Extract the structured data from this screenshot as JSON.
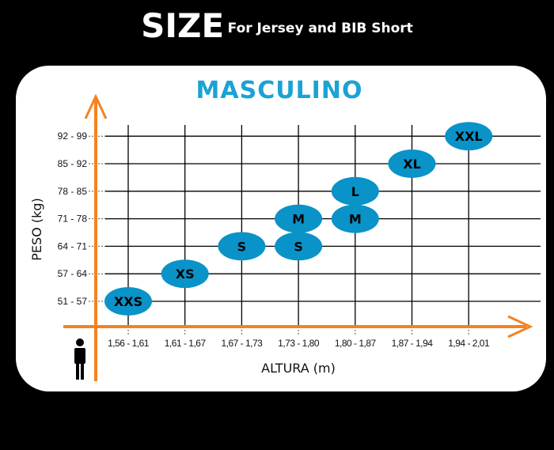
{
  "header": {
    "title": "SIZE",
    "subtitle": "For Jersey and BIB Short"
  },
  "chart_data": {
    "type": "scatter",
    "title": "MASCULINO",
    "xlabel": "ALTURA (m)",
    "ylabel": "PESO (kg)",
    "x_categories": [
      "1,56 - 1,61",
      "1,61 - 1,67",
      "1,67 - 1,73",
      "1,73 - 1,80",
      "1,80 - 1,87",
      "1,87 - 1,94",
      "1,94 - 2,01"
    ],
    "y_categories": [
      "51 - 57",
      "57 - 64",
      "64 - 71",
      "71 - 78",
      "78 - 85",
      "85 - 92",
      "92 - 99"
    ],
    "grid": true,
    "points": [
      {
        "label": "XXS",
        "x": "1,56 - 1,61",
        "y": "51 - 57"
      },
      {
        "label": "XS",
        "x": "1,61 - 1,67",
        "y": "57 - 64"
      },
      {
        "label": "S",
        "x": "1,67 - 1,73",
        "y": "64 - 71"
      },
      {
        "label": "S",
        "x": "1,73 - 1,80",
        "y": "64 - 71"
      },
      {
        "label": "M",
        "x": "1,73 - 1,80",
        "y": "71 - 78"
      },
      {
        "label": "M",
        "x": "1,80 - 1,87",
        "y": "71 - 78"
      },
      {
        "label": "L",
        "x": "1,80 - 1,87",
        "y": "78 - 85"
      },
      {
        "label": "XL",
        "x": "1,87 - 1,94",
        "y": "85 - 92"
      },
      {
        "label": "XXL",
        "x": "1,94 - 2,01",
        "y": "92 - 99"
      }
    ],
    "colors": {
      "bubble": "#0a93c8",
      "axis": "#f58220",
      "title": "#1aa3d4",
      "grid": "#000000"
    }
  },
  "icons": {
    "person": "person-icon"
  }
}
